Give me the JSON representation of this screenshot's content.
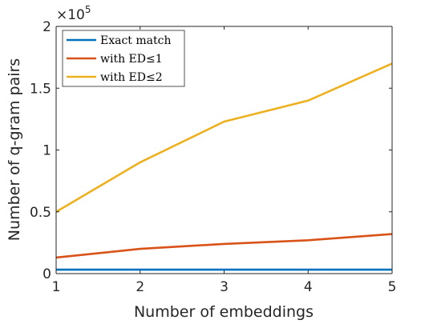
{
  "chart_data": {
    "type": "line",
    "xlabel": "Number of embeddings",
    "ylabel": "Number of q-gram pairs",
    "x": [
      1,
      2,
      3,
      4,
      5
    ],
    "xlim": [
      1,
      5
    ],
    "ylim": [
      0,
      200000
    ],
    "x_ticks": [
      1,
      2,
      3,
      4,
      5
    ],
    "y_ticks": [
      {
        "value": 0,
        "label": "0"
      },
      {
        "value": 50000,
        "label": "0.5"
      },
      {
        "value": 100000,
        "label": "1"
      },
      {
        "value": 150000,
        "label": "1.5"
      },
      {
        "value": 200000,
        "label": "2"
      }
    ],
    "y_multiplier_label": "×10",
    "y_multiplier_exponent": "5",
    "grid": false,
    "legend_position": "top-left",
    "series": [
      {
        "name": "Exact match",
        "color": "#0072BD",
        "values": [
          3200,
          3200,
          3200,
          3200,
          3200
        ]
      },
      {
        "name": "with ED≤1",
        "color": "#D95319",
        "values": [
          13000,
          20000,
          24000,
          27000,
          32000
        ]
      },
      {
        "name": "with ED≤2",
        "color": "#EDB120",
        "values": [
          50000,
          90000,
          123000,
          140000,
          170000
        ]
      }
    ]
  }
}
